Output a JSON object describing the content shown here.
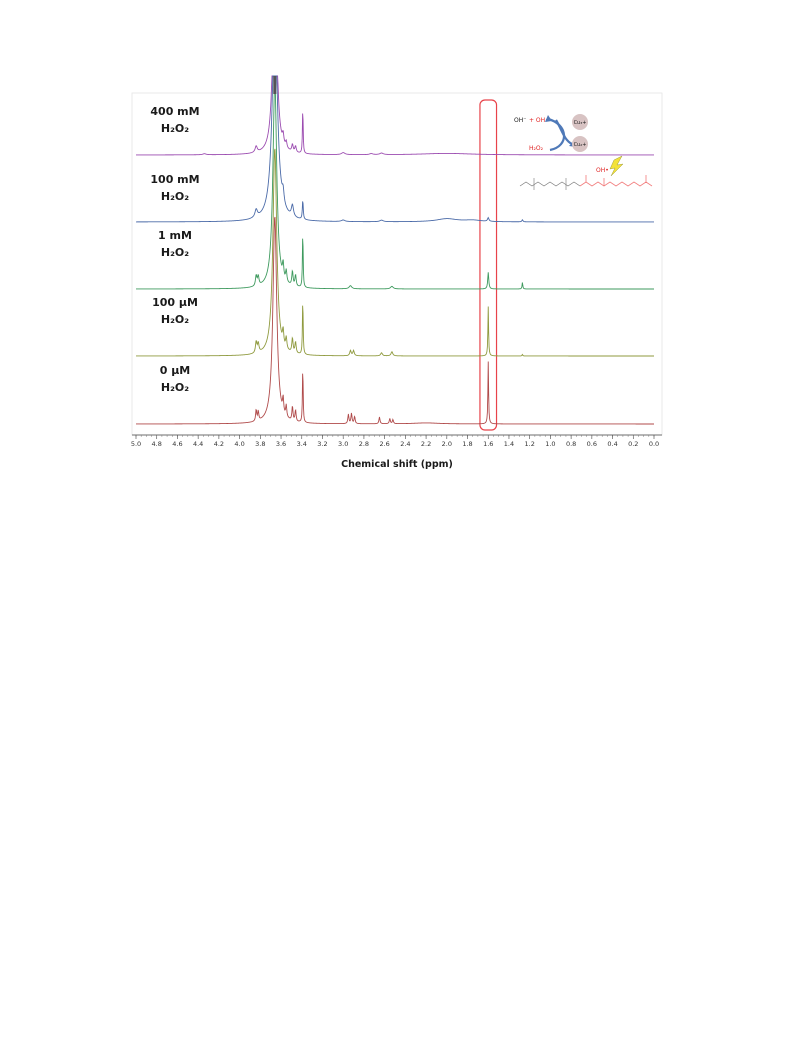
{
  "chart_data": {
    "type": "line",
    "title": "",
    "xlabel": "Chemical shift (ppm)",
    "ylabel": "",
    "xlim": [
      5.0,
      0.0
    ],
    "x_reversed": true,
    "ticks": [
      "5.0",
      "4.8",
      "4.6",
      "4.4",
      "4.2",
      "4.0",
      "3.8",
      "3.6",
      "3.4",
      "3.2",
      "3.0",
      "2.8",
      "2.6",
      "2.4",
      "2.2",
      "2.0",
      "1.8",
      "1.6",
      "1.4",
      "1.2",
      "1.0",
      "0.8",
      "0.6",
      "0.4",
      "0.2",
      "0.0"
    ],
    "highlight": {
      "from": 1.68,
      "to": 1.52,
      "color": "#e8434a"
    },
    "series": [
      {
        "name": "400 mM",
        "sub": "H₂O₂",
        "color": "#9b4bb0",
        "peaks": [
          [
            3.66,
            4.0,
            0.022
          ],
          [
            3.84,
            0.12,
            0.012
          ],
          [
            3.58,
            0.18,
            0.008
          ],
          [
            3.55,
            0.12,
            0.008
          ],
          [
            3.49,
            0.14,
            0.008
          ],
          [
            3.46,
            0.12,
            0.008
          ],
          [
            3.39,
            0.9,
            0.004
          ],
          [
            3.0,
            0.04,
            0.02
          ],
          [
            2.73,
            0.02,
            0.02
          ],
          [
            2.63,
            0.03,
            0.02
          ],
          [
            4.34,
            0.02,
            0.02
          ],
          [
            2.0,
            0.03,
            0.3
          ]
        ]
      },
      {
        "name": "100 mM",
        "sub": "H₂O₂",
        "color": "#4a6aa8",
        "peaks": [
          [
            3.66,
            4.0,
            0.03
          ],
          [
            3.84,
            0.15,
            0.014
          ],
          [
            3.58,
            0.22,
            0.01
          ],
          [
            3.49,
            0.22,
            0.012
          ],
          [
            3.39,
            0.38,
            0.005
          ],
          [
            3.0,
            0.03,
            0.02
          ],
          [
            2.63,
            0.03,
            0.02
          ],
          [
            1.6,
            0.07,
            0.008
          ],
          [
            1.27,
            0.04,
            0.006
          ],
          [
            2.0,
            0.06,
            0.12
          ],
          [
            1.75,
            0.03,
            0.1
          ]
        ]
      },
      {
        "name": "1 mM",
        "sub": "H₂O₂",
        "color": "#3e9a5e",
        "peaks": [
          [
            3.66,
            4.0,
            0.022
          ],
          [
            3.84,
            0.2,
            0.008
          ],
          [
            3.82,
            0.18,
            0.008
          ],
          [
            3.58,
            0.28,
            0.007
          ],
          [
            3.55,
            0.22,
            0.007
          ],
          [
            3.49,
            0.28,
            0.007
          ],
          [
            3.46,
            0.22,
            0.007
          ],
          [
            3.39,
            1.1,
            0.004
          ],
          [
            2.93,
            0.06,
            0.015
          ],
          [
            2.53,
            0.05,
            0.015
          ],
          [
            1.6,
            0.32,
            0.006
          ],
          [
            1.27,
            0.13,
            0.004
          ]
        ]
      },
      {
        "name": "100 µM",
        "sub": "H₂O₂",
        "color": "#8f9a3e",
        "peaks": [
          [
            3.66,
            4.0,
            0.022
          ],
          [
            3.84,
            0.22,
            0.008
          ],
          [
            3.82,
            0.18,
            0.008
          ],
          [
            3.58,
            0.28,
            0.007
          ],
          [
            3.55,
            0.22,
            0.007
          ],
          [
            3.49,
            0.28,
            0.007
          ],
          [
            3.46,
            0.22,
            0.007
          ],
          [
            3.39,
            1.1,
            0.004
          ],
          [
            2.93,
            0.1,
            0.008
          ],
          [
            2.9,
            0.1,
            0.008
          ],
          [
            2.63,
            0.06,
            0.01
          ],
          [
            2.53,
            0.08,
            0.01
          ],
          [
            1.6,
            0.95,
            0.004
          ],
          [
            1.27,
            0.03,
            0.004
          ]
        ]
      },
      {
        "name": "0 µM",
        "sub": "H₂O₂",
        "color": "#b04a4a",
        "peaks": [
          [
            3.66,
            4.0,
            0.022
          ],
          [
            3.84,
            0.22,
            0.006
          ],
          [
            3.82,
            0.18,
            0.006
          ],
          [
            3.58,
            0.28,
            0.006
          ],
          [
            3.55,
            0.22,
            0.006
          ],
          [
            3.49,
            0.28,
            0.006
          ],
          [
            3.46,
            0.22,
            0.006
          ],
          [
            3.39,
            1.1,
            0.004
          ],
          [
            2.95,
            0.18,
            0.006
          ],
          [
            2.92,
            0.2,
            0.006
          ],
          [
            2.89,
            0.14,
            0.006
          ],
          [
            2.65,
            0.13,
            0.006
          ],
          [
            2.55,
            0.1,
            0.006
          ],
          [
            2.52,
            0.08,
            0.006
          ],
          [
            1.6,
            1.2,
            0.004
          ],
          [
            2.2,
            0.02,
            0.15
          ]
        ]
      }
    ],
    "inset": {
      "oh1": "OH⁻",
      "oh2": "+ OH•",
      "h2o2": "H₂O₂",
      "cu_top": "Cu₃+",
      "cu_bottom": "Cu₂+",
      "oh_radical": "OH•"
    }
  }
}
